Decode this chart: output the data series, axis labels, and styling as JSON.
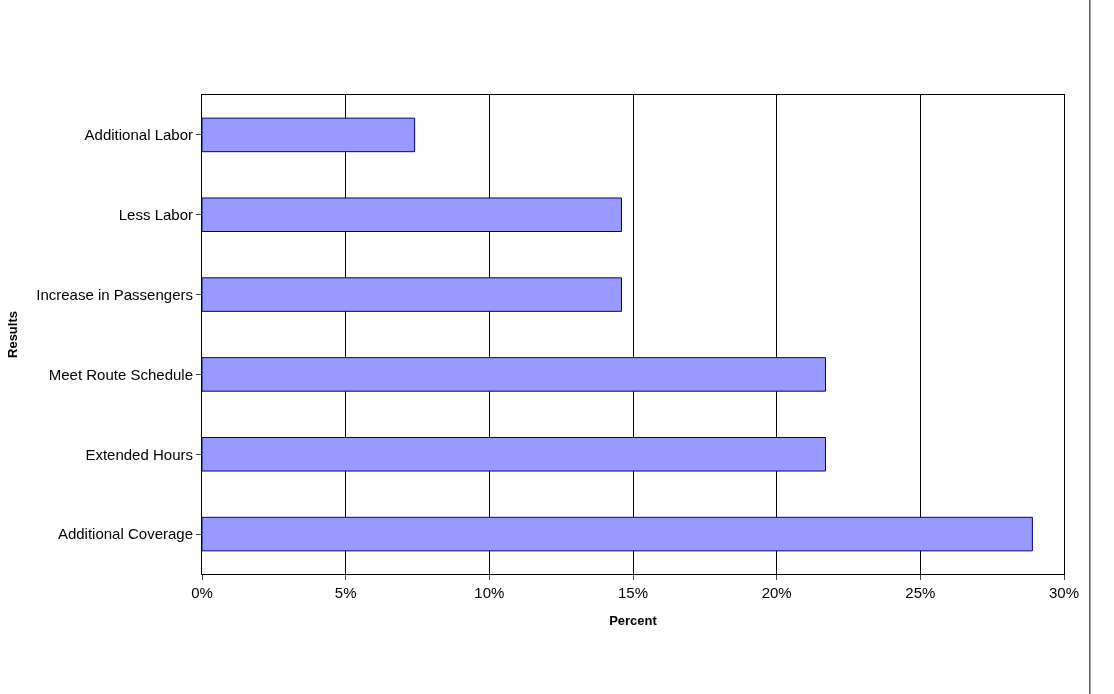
{
  "chart_data": {
    "type": "bar",
    "orientation": "horizontal",
    "xlabel": "Percent",
    "ylabel": "Results",
    "categories": [
      "Additional Labor",
      "Less Labor",
      "Increase in Passengers",
      "Meet Route Schedule",
      "Extended Hours",
      "Additional Coverage"
    ],
    "values": [
      7.4,
      14.6,
      14.6,
      21.7,
      21.7,
      28.9
    ],
    "color": "#9999ff",
    "xlim": [
      0,
      30
    ],
    "xticks": [
      {
        "value": 0,
        "label": "0%"
      },
      {
        "value": 5,
        "label": "5%"
      },
      {
        "value": 10,
        "label": "10%"
      },
      {
        "value": 15,
        "label": "15%"
      },
      {
        "value": 20,
        "label": "20%"
      },
      {
        "value": 25,
        "label": "25%"
      },
      {
        "value": 30,
        "label": "30%"
      }
    ],
    "grid": "x"
  }
}
